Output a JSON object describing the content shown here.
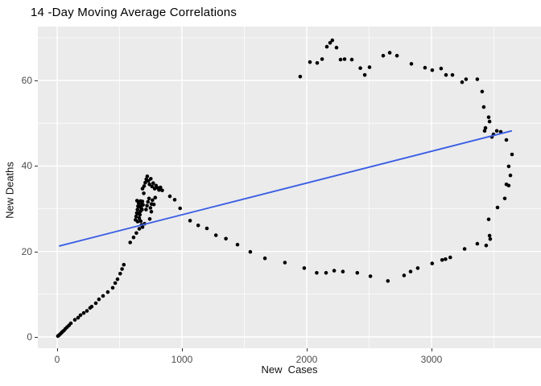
{
  "title": "14 -Day Moving Average Correlations",
  "chart_data": {
    "type": "scatter",
    "title": "14 -Day Moving Average Correlations",
    "xlabel": "New  Cases",
    "ylabel": "New Deaths",
    "x_ticks": [
      0,
      1000,
      2000,
      3000
    ],
    "x_minor_ticks": [
      500,
      1500,
      2500,
      3500
    ],
    "y_ticks": [
      0,
      20,
      40,
      60
    ],
    "y_minor_ticks": [
      10,
      30,
      50,
      70
    ],
    "xlim": [
      -155,
      3877
    ],
    "ylim": [
      -2.6,
      72.6
    ],
    "grid": "white major and minor gridlines on gray panel",
    "legend": "none",
    "panel_bg": "#EBEBEB",
    "grid_color": "#FFFFFF",
    "point_color": "#000000",
    "tick_label_color": "#4D4D4D",
    "trend_color": "#3A5FE6",
    "trend_line": [
      [
        20,
        21.3
      ],
      [
        3640,
        48.2
      ]
    ],
    "points": [
      [
        6,
        0.2
      ],
      [
        14,
        0.4
      ],
      [
        22,
        0.6
      ],
      [
        32,
        0.9
      ],
      [
        42,
        1.2
      ],
      [
        54,
        1.5
      ],
      [
        66,
        1.9
      ],
      [
        80,
        2.3
      ],
      [
        95,
        2.7
      ],
      [
        110,
        3.2
      ],
      [
        142,
        4.0
      ],
      [
        168,
        4.5
      ],
      [
        187,
        5.1
      ],
      [
        213,
        5.6
      ],
      [
        239,
        6.1
      ],
      [
        264,
        6.8
      ],
      [
        277,
        7.1
      ],
      [
        310,
        7.9
      ],
      [
        335,
        8.8
      ],
      [
        368,
        9.6
      ],
      [
        406,
        10.5
      ],
      [
        445,
        11.5
      ],
      [
        465,
        12.6
      ],
      [
        484,
        13.5
      ],
      [
        505,
        14.8
      ],
      [
        520,
        15.9
      ],
      [
        534,
        16.9
      ],
      [
        585,
        22.1
      ],
      [
        612,
        23.3
      ],
      [
        635,
        24.3
      ],
      [
        658,
        25.3
      ],
      [
        676,
        26.2
      ],
      [
        628,
        27.4
      ],
      [
        633,
        28.2
      ],
      [
        638,
        29.0
      ],
      [
        643,
        29.8
      ],
      [
        648,
        30.6
      ],
      [
        653,
        31.3
      ],
      [
        658,
        27.8
      ],
      [
        663,
        28.6
      ],
      [
        668,
        29.4
      ],
      [
        673,
        30.2
      ],
      [
        678,
        31.0
      ],
      [
        683,
        31.7
      ],
      [
        640,
        31.9
      ],
      [
        650,
        28.9
      ],
      [
        660,
        30.5
      ],
      [
        670,
        27.1
      ],
      [
        680,
        29.8
      ],
      [
        688,
        30.9
      ],
      [
        645,
        27.0
      ],
      [
        667,
        31.8
      ],
      [
        684,
        25.7
      ],
      [
        700,
        26.5
      ],
      [
        742,
        27.6
      ],
      [
        755,
        29.3
      ],
      [
        712,
        29.8
      ],
      [
        720,
        30.7
      ],
      [
        728,
        31.6
      ],
      [
        736,
        32.4
      ],
      [
        748,
        30.2
      ],
      [
        756,
        31.1
      ],
      [
        764,
        32.0
      ],
      [
        775,
        31.0
      ],
      [
        786,
        32.6
      ],
      [
        697,
        35.3
      ],
      [
        706,
        36.1
      ],
      [
        714,
        36.9
      ],
      [
        722,
        37.6
      ],
      [
        731,
        36.5
      ],
      [
        740,
        35.7
      ],
      [
        750,
        37.0
      ],
      [
        760,
        35.2
      ],
      [
        770,
        36.0
      ],
      [
        781,
        34.7
      ],
      [
        792,
        35.4
      ],
      [
        684,
        34.7
      ],
      [
        694,
        33.6
      ],
      [
        804,
        34.9
      ],
      [
        816,
        34.4
      ],
      [
        828,
        35.0
      ],
      [
        842,
        34.3
      ],
      [
        903,
        32.9
      ],
      [
        942,
        32.1
      ],
      [
        985,
        30.1
      ],
      [
        1065,
        27.2
      ],
      [
        1130,
        26.1
      ],
      [
        1200,
        25.4
      ],
      [
        1272,
        23.8
      ],
      [
        1352,
        23.0
      ],
      [
        1445,
        21.6
      ],
      [
        1548,
        19.9
      ],
      [
        1665,
        18.4
      ],
      [
        1825,
        17.4
      ],
      [
        1980,
        16.1
      ],
      [
        2080,
        15.0
      ],
      [
        2155,
        15.0
      ],
      [
        2220,
        15.5
      ],
      [
        2290,
        15.3
      ],
      [
        2405,
        15.0
      ],
      [
        2510,
        14.2
      ],
      [
        2650,
        13.1
      ],
      [
        2780,
        14.4
      ],
      [
        2832,
        15.3
      ],
      [
        2890,
        16.1
      ],
      [
        3005,
        17.2
      ],
      [
        3085,
        18.0
      ],
      [
        3112,
        18.2
      ],
      [
        3150,
        18.6
      ],
      [
        3265,
        20.6
      ],
      [
        3367,
        21.8
      ],
      [
        3438,
        21.4
      ],
      [
        3470,
        22.9
      ],
      [
        3465,
        23.7
      ],
      [
        3458,
        27.5
      ],
      [
        3529,
        30.3
      ],
      [
        3587,
        32.4
      ],
      [
        3600,
        35.7
      ],
      [
        3619,
        35.4
      ],
      [
        3632,
        37.8
      ],
      [
        3619,
        39.9
      ],
      [
        3645,
        42.7
      ],
      [
        3600,
        46.1
      ],
      [
        3484,
        46.8
      ],
      [
        3497,
        47.4
      ],
      [
        3523,
        48.2
      ],
      [
        3555,
        48.0
      ],
      [
        3432,
        48.9
      ],
      [
        3426,
        48.2
      ],
      [
        3465,
        50.4
      ],
      [
        3458,
        51.4
      ],
      [
        3419,
        53.8
      ],
      [
        3406,
        57.4
      ],
      [
        3367,
        60.3
      ],
      [
        3277,
        60.3
      ],
      [
        3245,
        59.6
      ],
      [
        3168,
        61.3
      ],
      [
        3116,
        61.3
      ],
      [
        3077,
        62.8
      ],
      [
        3006,
        62.4
      ],
      [
        2948,
        63.0
      ],
      [
        2839,
        63.9
      ],
      [
        2723,
        65.8
      ],
      [
        2665,
        66.5
      ],
      [
        2613,
        65.8
      ],
      [
        2503,
        63.1
      ],
      [
        2465,
        61.3
      ],
      [
        2430,
        62.9
      ],
      [
        2361,
        64.9
      ],
      [
        2303,
        65.0
      ],
      [
        2271,
        64.9
      ],
      [
        2239,
        67.7
      ],
      [
        2205,
        69.4
      ],
      [
        2187,
        68.8
      ],
      [
        2161,
        67.9
      ],
      [
        2123,
        65.0
      ],
      [
        2084,
        64.1
      ],
      [
        2026,
        64.3
      ],
      [
        1948,
        60.9
      ]
    ]
  }
}
